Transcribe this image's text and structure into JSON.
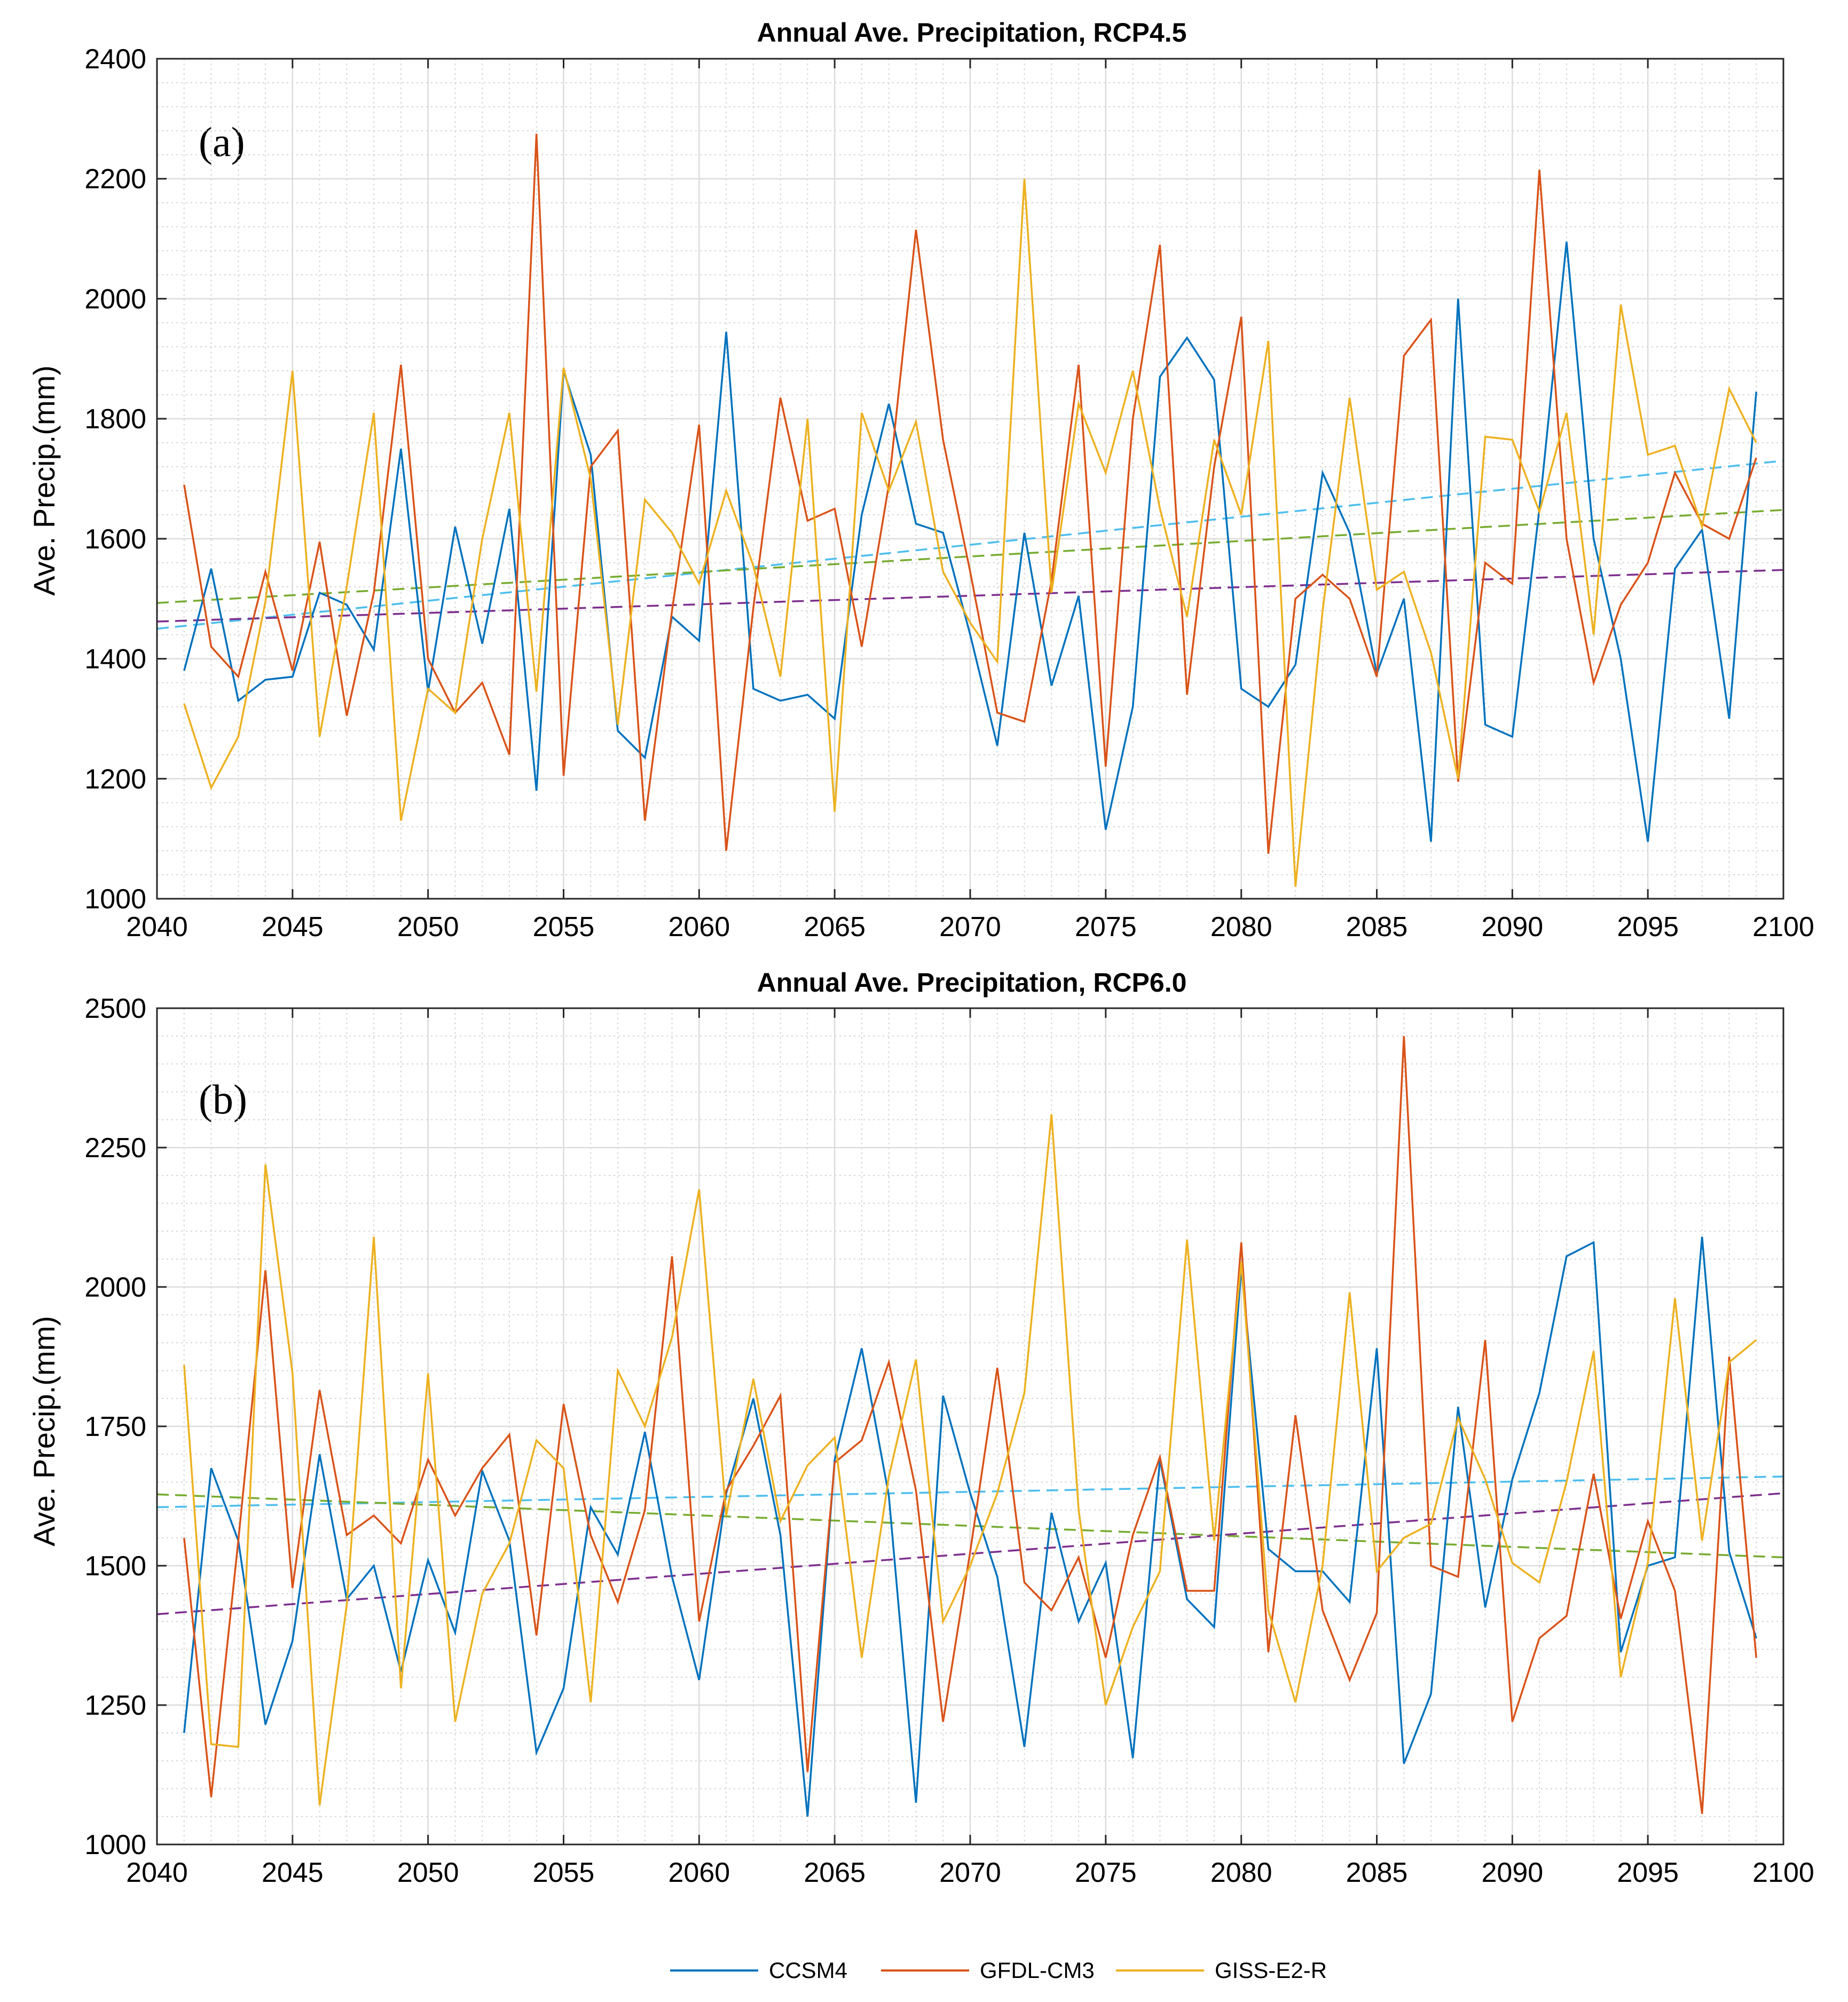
{
  "figure": {
    "legend": [
      {
        "name": "CCSM4",
        "color": "#0072BD"
      },
      {
        "name": "GFDL-CM3",
        "color": "#D95319"
      },
      {
        "name": "GISS-E2-R",
        "color": "#EDB120"
      }
    ]
  },
  "chart_data": [
    {
      "type": "line",
      "title": "Annual Ave. Precipitation, RCP4.5",
      "panel_label": "(a)",
      "xlabel": "",
      "ylabel": "Ave. Precip.(mm)",
      "xlim": [
        2040,
        2100
      ],
      "ylim": [
        1000,
        2400
      ],
      "xticks": [
        2040,
        2045,
        2050,
        2055,
        2060,
        2065,
        2070,
        2075,
        2080,
        2085,
        2090,
        2095,
        2100
      ],
      "yticks": [
        1000,
        1200,
        1400,
        1600,
        1800,
        2000,
        2200,
        2400
      ],
      "grid": true,
      "x": [
        2041,
        2042,
        2043,
        2044,
        2045,
        2046,
        2047,
        2048,
        2049,
        2050,
        2051,
        2052,
        2053,
        2054,
        2055,
        2056,
        2057,
        2058,
        2059,
        2060,
        2061,
        2062,
        2063,
        2064,
        2065,
        2066,
        2067,
        2068,
        2069,
        2070,
        2071,
        2072,
        2073,
        2074,
        2075,
        2076,
        2077,
        2078,
        2079,
        2080,
        2081,
        2082,
        2083,
        2084,
        2085,
        2086,
        2087,
        2088,
        2089,
        2090,
        2091,
        2092,
        2093,
        2094,
        2095,
        2096,
        2097,
        2098,
        2099
      ],
      "series": [
        {
          "name": "CCSM4",
          "color": "#0072BD",
          "values": [
            1380,
            1550,
            1330,
            1365,
            1370,
            1510,
            1490,
            1415,
            1750,
            1345,
            1620,
            1425,
            1650,
            1180,
            1880,
            1740,
            1280,
            1235,
            1470,
            1430,
            1945,
            1350,
            1330,
            1340,
            1300,
            1640,
            1825,
            1625,
            1610,
            1440,
            1255,
            1610,
            1355,
            1505,
            1115,
            1320,
            1870,
            1935,
            1865,
            1350,
            1320,
            1390,
            1710,
            1610,
            1375,
            1500,
            1095,
            2000,
            1290,
            1270,
            1650,
            2095,
            1600,
            1400,
            1095,
            1550,
            1615,
            1300,
            1845
          ]
        },
        {
          "name": "GFDL-CM3",
          "color": "#D95319",
          "values": [
            1690,
            1420,
            1370,
            1545,
            1380,
            1595,
            1305,
            1510,
            1890,
            1400,
            1310,
            1360,
            1240,
            2275,
            1205,
            1720,
            1780,
            1130,
            1480,
            1790,
            1080,
            1485,
            1835,
            1630,
            1650,
            1420,
            1690,
            2115,
            1765,
            1545,
            1310,
            1295,
            1530,
            1890,
            1220,
            1800,
            2090,
            1340,
            1720,
            1970,
            1075,
            1500,
            1540,
            1500,
            1370,
            1905,
            1965,
            1195,
            1560,
            1525,
            2215,
            1600,
            1360,
            1490,
            1560,
            1710,
            1625,
            1600,
            1735
          ]
        },
        {
          "name": "GISS-E2-R",
          "color": "#EDB120",
          "values": [
            1325,
            1185,
            1270,
            1495,
            1880,
            1270,
            1520,
            1810,
            1130,
            1350,
            1310,
            1600,
            1810,
            1345,
            1885,
            1700,
            1290,
            1665,
            1610,
            1525,
            1680,
            1555,
            1370,
            1800,
            1145,
            1810,
            1680,
            1795,
            1545,
            1460,
            1395,
            2200,
            1510,
            1825,
            1710,
            1880,
            1650,
            1470,
            1765,
            1640,
            1930,
            1020,
            1480,
            1835,
            1515,
            1545,
            1410,
            1200,
            1770,
            1765,
            1645,
            1810,
            1440,
            1990,
            1740,
            1755,
            1620,
            1850,
            1760
          ]
        }
      ],
      "trend_lines": [
        {
          "color": "#4DBEEE",
          "x": [
            2040,
            2100
          ],
          "values": [
            1450,
            1730
          ]
        },
        {
          "color": "#77AC30",
          "x": [
            2040,
            2100
          ],
          "values": [
            1493,
            1648
          ]
        },
        {
          "color": "#7E2F8E",
          "x": [
            2040,
            2100
          ],
          "values": [
            1462,
            1548
          ]
        }
      ]
    },
    {
      "type": "line",
      "title": "Annual Ave. Precipitation, RCP6.0",
      "panel_label": "(b)",
      "xlabel": "",
      "ylabel": "Ave. Precip.(mm)",
      "xlim": [
        2040,
        2100
      ],
      "ylim": [
        1000,
        2500
      ],
      "xticks": [
        2040,
        2045,
        2050,
        2055,
        2060,
        2065,
        2070,
        2075,
        2080,
        2085,
        2090,
        2095,
        2100
      ],
      "yticks": [
        1000,
        1250,
        1500,
        1750,
        2000,
        2250,
        2500
      ],
      "grid": true,
      "x": [
        2041,
        2042,
        2043,
        2044,
        2045,
        2046,
        2047,
        2048,
        2049,
        2050,
        2051,
        2052,
        2053,
        2054,
        2055,
        2056,
        2057,
        2058,
        2059,
        2060,
        2061,
        2062,
        2063,
        2064,
        2065,
        2066,
        2067,
        2068,
        2069,
        2070,
        2071,
        2072,
        2073,
        2074,
        2075,
        2076,
        2077,
        2078,
        2079,
        2080,
        2081,
        2082,
        2083,
        2084,
        2085,
        2086,
        2087,
        2088,
        2089,
        2090,
        2091,
        2092,
        2093,
        2094,
        2095,
        2096,
        2097,
        2098,
        2099
      ],
      "series": [
        {
          "name": "CCSM4",
          "color": "#0072BD",
          "values": [
            1200,
            1675,
            1545,
            1215,
            1365,
            1700,
            1440,
            1500,
            1310,
            1510,
            1380,
            1670,
            1545,
            1165,
            1280,
            1605,
            1520,
            1740,
            1480,
            1295,
            1630,
            1800,
            1555,
            1050,
            1690,
            1890,
            1625,
            1075,
            1805,
            1630,
            1480,
            1175,
            1595,
            1400,
            1505,
            1155,
            1690,
            1440,
            1390,
            2035,
            1530,
            1490,
            1490,
            1435,
            1890,
            1145,
            1270,
            1785,
            1425,
            1655,
            1810,
            2055,
            2080,
            1345,
            1500,
            1515,
            2090,
            1525,
            1370
          ]
        },
        {
          "name": "GFDL-CM3",
          "color": "#D95319",
          "values": [
            1550,
            1085,
            1545,
            2030,
            1460,
            1815,
            1555,
            1590,
            1540,
            1690,
            1590,
            1675,
            1735,
            1375,
            1790,
            1555,
            1435,
            1600,
            2055,
            1400,
            1635,
            1715,
            1805,
            1130,
            1685,
            1725,
            1865,
            1635,
            1220,
            1525,
            1855,
            1470,
            1420,
            1515,
            1335,
            1555,
            1695,
            1455,
            1455,
            2080,
            1345,
            1770,
            1420,
            1295,
            1415,
            2450,
            1500,
            1480,
            1905,
            1220,
            1370,
            1410,
            1665,
            1405,
            1580,
            1455,
            1055,
            1875,
            1335
          ]
        },
        {
          "name": "GISS-E2-R",
          "color": "#EDB120",
          "values": [
            1860,
            1180,
            1175,
            2220,
            1845,
            1070,
            1430,
            2090,
            1280,
            1845,
            1220,
            1450,
            1540,
            1725,
            1675,
            1255,
            1850,
            1750,
            1910,
            2175,
            1590,
            1835,
            1580,
            1680,
            1730,
            1335,
            1660,
            1870,
            1400,
            1500,
            1630,
            1810,
            2310,
            1600,
            1250,
            1390,
            1490,
            2085,
            1545,
            2045,
            1420,
            1255,
            1500,
            1990,
            1490,
            1550,
            1575,
            1765,
            1655,
            1505,
            1470,
            1650,
            1885,
            1300,
            1505,
            1980,
            1545,
            1865,
            1905
          ]
        }
      ],
      "trend_lines": [
        {
          "color": "#4DBEEE",
          "x": [
            2040,
            2100
          ],
          "values": [
            1605,
            1660
          ]
        },
        {
          "color": "#77AC30",
          "x": [
            2040,
            2100
          ],
          "values": [
            1628,
            1515
          ]
        },
        {
          "color": "#7E2F8E",
          "x": [
            2040,
            2100
          ],
          "values": [
            1413,
            1630
          ]
        }
      ]
    }
  ]
}
